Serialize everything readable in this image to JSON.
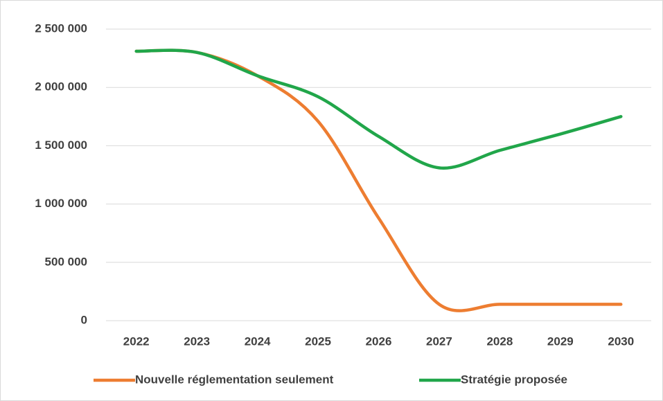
{
  "chart_data": {
    "type": "line",
    "categories": [
      "2022",
      "2023",
      "2024",
      "2025",
      "2026",
      "2027",
      "2028",
      "2029",
      "2030"
    ],
    "series": [
      {
        "name": "Nouvelle réglementation seulement",
        "color": "#ed7d31",
        "values": [
          2310000,
          2300000,
          2100000,
          1710000,
          880000,
          140000,
          140000,
          140000,
          140000
        ]
      },
      {
        "name": "Stratégie proposée",
        "color": "#21a64a",
        "values": [
          2310000,
          2300000,
          2100000,
          1920000,
          1580000,
          1310000,
          1460000,
          1600000,
          1750000
        ]
      }
    ],
    "ylim": [
      0,
      2500000
    ],
    "yticks": [
      0,
      {
        "value": 500000,
        "label": "500 000"
      },
      {
        "value": 1000000,
        "label": "1 000 000"
      },
      {
        "value": 1500000,
        "label": "1 500 000"
      },
      {
        "value": 2000000,
        "label": "2 000 000"
      },
      {
        "value": 2500000,
        "label": "2 500 000"
      }
    ],
    "grid": true,
    "smooth": true,
    "legend": "bottom"
  }
}
